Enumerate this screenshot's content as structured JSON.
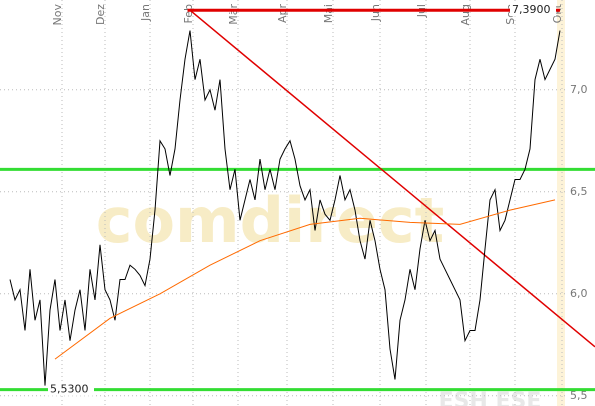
{
  "chart_data": {
    "type": "line",
    "watermark": "comdirect",
    "footer_text": "ESH ESE",
    "xlim": [
      -2,
      117
    ],
    "ylim": [
      5.45,
      7.44
    ],
    "grid": true,
    "xticks": [
      {
        "value": 10.4,
        "label": "Nov"
      },
      {
        "value": 19,
        "label": "Dez"
      },
      {
        "value": 28,
        "label": "Jan"
      },
      {
        "value": 36.6,
        "label": "Feb"
      },
      {
        "value": 45.6,
        "label": "Mär"
      },
      {
        "value": 55.4,
        "label": "Apr"
      },
      {
        "value": 64.6,
        "label": "Mai"
      },
      {
        "value": 74,
        "label": "Jun"
      },
      {
        "value": 83.2,
        "label": "Jul"
      },
      {
        "value": 92,
        "label": "Aug"
      },
      {
        "value": 101,
        "label": "Sep"
      },
      {
        "value": 110.4,
        "label": "Okt"
      }
    ],
    "yticks": [
      {
        "value": 5.5,
        "label": "5,5"
      },
      {
        "value": 6.0,
        "label": "6,0"
      },
      {
        "value": 6.5,
        "label": "6,5"
      },
      {
        "value": 7.0,
        "label": "7,0"
      }
    ],
    "series": [
      {
        "color": "#000000",
        "values": [
          6.07,
          5.97,
          6.02,
          5.82,
          6.12,
          5.87,
          5.97,
          5.55,
          5.92,
          6.07,
          5.82,
          5.97,
          5.77,
          5.92,
          6.02,
          5.82,
          6.12,
          5.97,
          6.24,
          6.02,
          5.97,
          5.87,
          6.07,
          6.07,
          6.14,
          6.12,
          6.09,
          6.04,
          6.17,
          6.41,
          6.75,
          6.71,
          6.58,
          6.71,
          6.95,
          7.15,
          7.29,
          7.05,
          7.15,
          6.95,
          7.0,
          6.9,
          7.05,
          6.71,
          6.51,
          6.61,
          6.36,
          6.46,
          6.56,
          6.46,
          6.66,
          6.51,
          6.61,
          6.51,
          6.66,
          6.71,
          6.75,
          6.66,
          6.53,
          6.46,
          6.51,
          6.31,
          6.46,
          6.39,
          6.36,
          6.46,
          6.58,
          6.46,
          6.51,
          6.41,
          6.26,
          6.17,
          6.36,
          6.26,
          6.12,
          6.02,
          5.73,
          5.58,
          5.87,
          5.97,
          6.12,
          6.02,
          6.22,
          6.36,
          6.26,
          6.31,
          6.17,
          6.12,
          6.07,
          6.02,
          5.97,
          5.77,
          5.82,
          5.82,
          5.97,
          6.22,
          6.46,
          6.51,
          6.31,
          6.36,
          6.46,
          6.56,
          6.56,
          6.61,
          6.71,
          7.05,
          7.15,
          7.05,
          7.1,
          7.15,
          7.29
        ]
      },
      {
        "color": "#ff6a00",
        "x": [
          9,
          20,
          30,
          40,
          50,
          60,
          70,
          80,
          90,
          100,
          109
        ],
        "values": [
          5.68,
          5.88,
          6.0,
          6.14,
          6.26,
          6.34,
          6.37,
          6.35,
          6.34,
          6.41,
          6.46
        ]
      }
    ],
    "levels": [
      {
        "value": 7.39,
        "label": "7,3900",
        "color": "#e00000",
        "from": 35.5,
        "to": 110,
        "label_side": "right"
      },
      {
        "value": 6.61,
        "color": "#33dd33",
        "from": -2,
        "to": 117
      },
      {
        "value": 5.53,
        "label": "5,5300",
        "color": "#33dd33",
        "from": -2,
        "to": 117,
        "label_side": "left"
      }
    ],
    "trendlines": [
      {
        "color": "#e00000",
        "x": [
          36,
          117
        ],
        "y": [
          7.39,
          5.74
        ]
      }
    ]
  }
}
